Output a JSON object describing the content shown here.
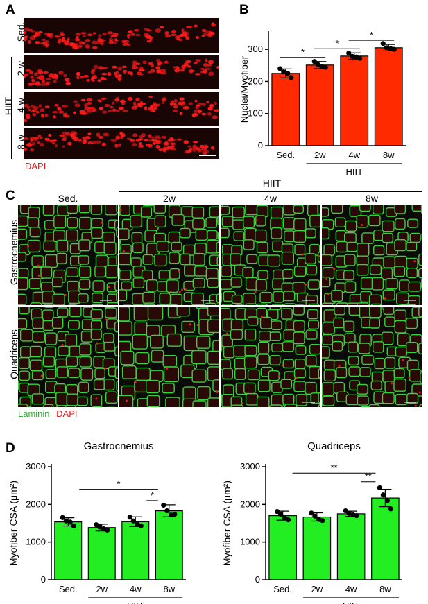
{
  "panels": {
    "a": "A",
    "b": "B",
    "c": "C",
    "d": "D"
  },
  "panel_a": {
    "rows": [
      "Sed.",
      "2 w",
      "4 w",
      "8 w"
    ],
    "group_label": "HIIT",
    "stain_label": "DAPI",
    "colors": {
      "nuclei": "#ff1a1a",
      "background": "#1a0505"
    }
  },
  "panel_c": {
    "group_label": "HIIT",
    "columns": [
      "Sed.",
      "2w",
      "4w",
      "8w"
    ],
    "rows": [
      "Gastrocnemius",
      "Quadriceps"
    ],
    "legend": {
      "laminin": "Laminin",
      "dapi": "DAPI"
    },
    "colors": {
      "laminin": "#35d43a",
      "dapi": "#e02020"
    }
  },
  "chart_data": [
    {
      "type": "bar",
      "panel": "B",
      "title": "",
      "categories": [
        "Sed.",
        "2w",
        "4w",
        "8w"
      ],
      "values": [
        225,
        251,
        279,
        305
      ],
      "errors": [
        14,
        11,
        10,
        10
      ],
      "points": [
        [
          240,
          230,
          225,
          212
        ],
        [
          262,
          252,
          246,
          244
        ],
        [
          288,
          278,
          276,
          272
        ],
        [
          318,
          305,
          302,
          300
        ]
      ],
      "xlabel": "",
      "ylabel": "Nuclei/Myofiber",
      "ylim": [
        0,
        350
      ],
      "yticks": [
        0,
        100,
        200,
        300
      ],
      "group_label": "HIIT",
      "significance": [
        "*",
        "*",
        "*"
      ],
      "bar_color": "#ff2a00"
    },
    {
      "type": "bar",
      "panel": "D",
      "title": "Gastrocnemius",
      "categories": [
        "Sed.",
        "2w",
        "4w",
        "8w"
      ],
      "values": [
        1535,
        1385,
        1540,
        1830
      ],
      "errors": [
        110,
        90,
        130,
        160
      ],
      "points": [
        [
          1650,
          1560,
          1530,
          1430
        ],
        [
          1460,
          1400,
          1350,
          1320
        ],
        [
          1660,
          1560,
          1470,
          1430
        ],
        [
          1980,
          1830,
          1720,
          1740
        ]
      ],
      "xlabel": "",
      "ylabel": "Myofiber CSA (μm²)",
      "ylim": [
        0,
        3000
      ],
      "yticks": [
        0,
        1000,
        2000,
        3000
      ],
      "group_label": "HIIT",
      "significance": [
        "*",
        "*"
      ],
      "bar_color": "#22ee22"
    },
    {
      "type": "bar",
      "panel": "D",
      "title": "Quadriceps",
      "categories": [
        "Sed.",
        "2w",
        "4w",
        "8w"
      ],
      "values": [
        1700,
        1665,
        1750,
        2170
      ],
      "errors": [
        120,
        110,
        70,
        230
      ],
      "points": [
        [
          1810,
          1740,
          1640,
          1590
        ],
        [
          1770,
          1690,
          1600,
          1570
        ],
        [
          1830,
          1760,
          1720,
          1700
        ],
        [
          2440,
          2250,
          2100,
          1880
        ]
      ],
      "xlabel": "",
      "ylabel": "Myofiber CSA (μm²)",
      "ylim": [
        0,
        3000
      ],
      "yticks": [
        0,
        1000,
        2000,
        3000
      ],
      "group_label": "HIIT",
      "significance": [
        "**",
        "**"
      ],
      "bar_color": "#22ee22"
    }
  ]
}
